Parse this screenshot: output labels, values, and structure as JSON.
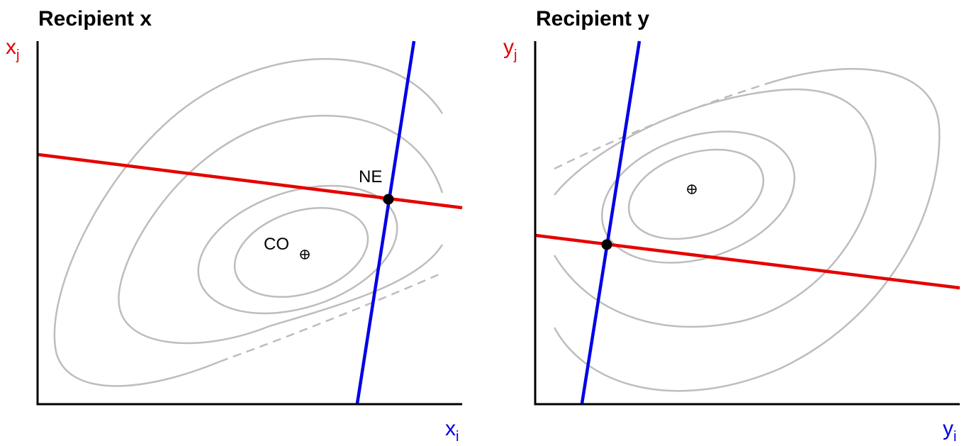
{
  "panels": [
    {
      "title": "Recipient x",
      "ylabel": {
        "base": "x",
        "sub": "j"
      },
      "xlabel": {
        "base": "x",
        "sub": "i"
      },
      "points": {
        "ne_label": "NE",
        "co_label": "CO"
      }
    },
    {
      "title": "Recipient y",
      "ylabel": {
        "base": "y",
        "sub": "j"
      },
      "xlabel": {
        "base": "y",
        "sub": "i"
      }
    }
  ],
  "colors": {
    "red_reaction": "#e60000",
    "blue_reaction": "#0000e6",
    "contour": "#bdbdbd",
    "axis": "#000000"
  }
}
